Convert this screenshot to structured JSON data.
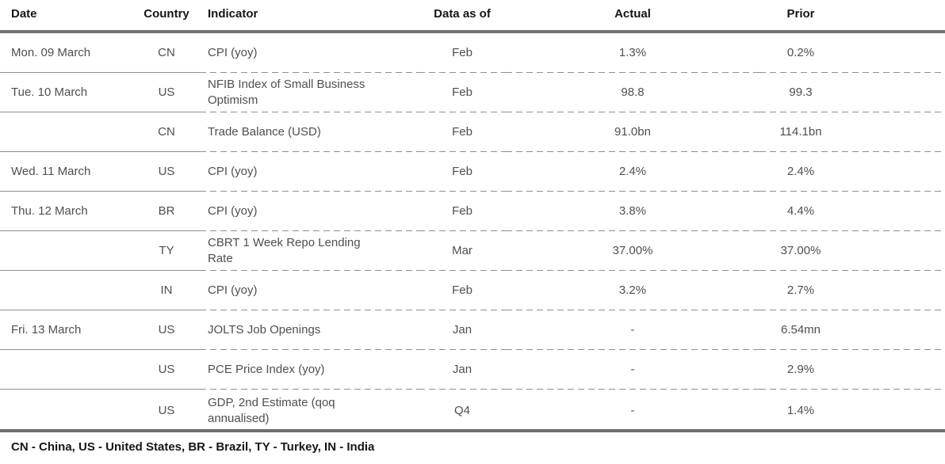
{
  "header": {
    "columns": [
      "Date",
      "Country",
      "Indicator",
      "Data as of",
      "Actual",
      "Prior"
    ]
  },
  "rows": [
    {
      "date": "Mon. 09 March",
      "country": "CN",
      "indicator": "CPI (yoy)",
      "data_as_of": "Feb",
      "actual": "1.3%",
      "prior": "0.2%"
    },
    {
      "date": "Tue. 10 March",
      "country": "US",
      "indicator": "NFIB Index of Small Business Optimism",
      "data_as_of": "Feb",
      "actual": "98.8",
      "prior": "99.3"
    },
    {
      "date": "",
      "country": "CN",
      "indicator": "Trade Balance (USD)",
      "data_as_of": "Feb",
      "actual": "91.0bn",
      "prior": "114.1bn"
    },
    {
      "date": "Wed. 11 March",
      "country": "US",
      "indicator": "CPI (yoy)",
      "data_as_of": "Feb",
      "actual": "2.4%",
      "prior": "2.4%"
    },
    {
      "date": "Thu. 12 March",
      "country": "BR",
      "indicator": "CPI (yoy)",
      "data_as_of": "Feb",
      "actual": "3.8%",
      "prior": "4.4%"
    },
    {
      "date": "",
      "country": "TY",
      "indicator": "CBRT 1 Week Repo Lending Rate",
      "data_as_of": "Mar",
      "actual": "37.00%",
      "prior": "37.00%"
    },
    {
      "date": "",
      "country": "IN",
      "indicator": "CPI (yoy)",
      "data_as_of": "Feb",
      "actual": "3.2%",
      "prior": "2.7%"
    },
    {
      "date": "Fri. 13 March",
      "country": "US",
      "indicator": "JOLTS Job Openings",
      "data_as_of": "Jan",
      "actual": "-",
      "prior": "6.54mn"
    },
    {
      "date": "",
      "country": "US",
      "indicator": "PCE Price Index (yoy)",
      "data_as_of": "Jan",
      "actual": "-",
      "prior": "2.9%"
    },
    {
      "date": "",
      "country": "US",
      "indicator": "GDP, 2nd Estimate (qoq annualised)",
      "data_as_of": "Q4",
      "actual": "-",
      "prior": "1.4%"
    }
  ],
  "footer": {
    "legend": "CN - China, US - United States, BR - Brazil, TY - Turkey, IN - India"
  },
  "colors": {
    "header_rule": "#737373",
    "bottom_rule": "#6e6e6e",
    "row_rule": "#8f8f8f",
    "header_text": "#161616",
    "body_text": "#4f4f4f"
  }
}
